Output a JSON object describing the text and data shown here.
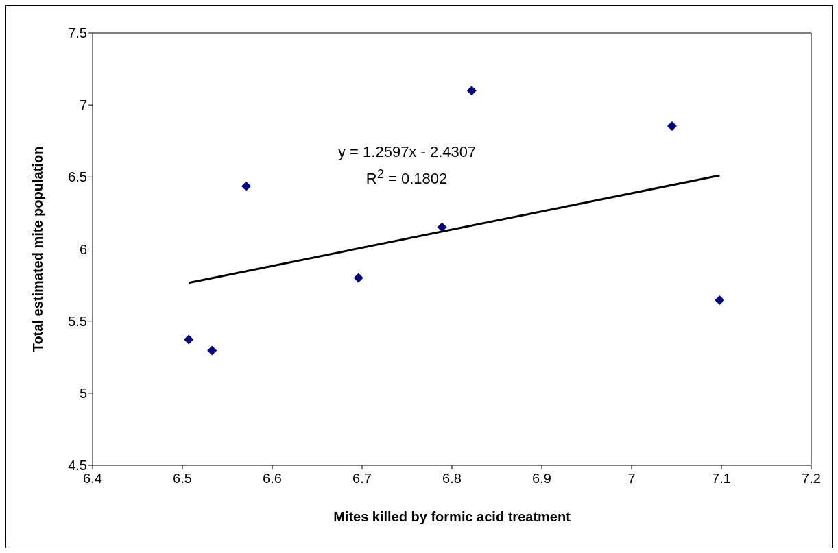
{
  "chart_data": {
    "type": "scatter",
    "xlabel": "Mites killed by formic acid treatment",
    "ylabel": "Total estimated mite population",
    "x": [
      6.507,
      6.533,
      6.571,
      6.696,
      6.789,
      6.822,
      7.045,
      7.098
    ],
    "series": [
      {
        "color": "#000080",
        "marker": "diamond",
        "values": [
          5.372,
          5.296,
          6.436,
          5.8,
          6.152,
          7.1,
          6.854,
          5.646
        ]
      },
      {
        "type": "line",
        "color": "#000000",
        "marker": "none",
        "x": [
          6.507,
          7.098
        ],
        "values": [
          5.766,
          6.511
        ]
      }
    ],
    "xlim": [
      6.4,
      7.2
    ],
    "xticks": [
      6.4,
      6.5,
      6.6,
      6.7,
      6.8,
      6.9,
      7,
      7.1,
      7.2
    ],
    "ylim": [
      4.5,
      7.5
    ],
    "yticks": [
      4.5,
      5,
      5.5,
      6,
      6.5,
      7,
      7.5
    ],
    "grid": false,
    "legend": false,
    "annotations": [
      "y = 1.2597x - 2.4307",
      "R$^{2}$ = 0.1802"
    ]
  }
}
